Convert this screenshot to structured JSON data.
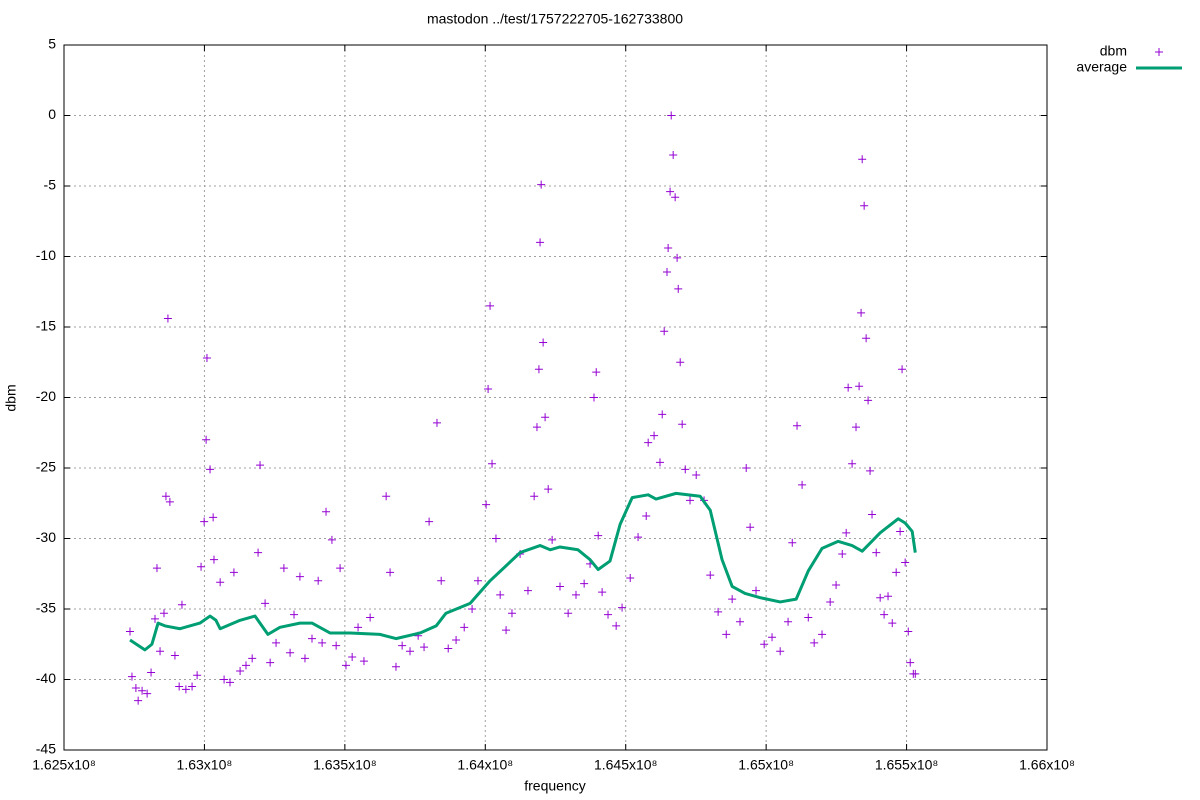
{
  "chart_data": {
    "type": "scatter",
    "title": "mastodon ../test/1757222705-162733800",
    "x_label": "frequency",
    "y_label": "dbm",
    "xlim": [
      162500000,
      166000000
    ],
    "xticks": [
      {
        "value": 162500000,
        "label": "1.625x10⁸"
      },
      {
        "value": 163000000,
        "label": "1.63x10⁸"
      },
      {
        "value": 163500000,
        "label": "1.635x10⁸"
      },
      {
        "value": 164000000,
        "label": "1.64x10⁸"
      },
      {
        "value": 164500000,
        "label": "1.645x10⁸"
      },
      {
        "value": 165000000,
        "label": "1.65x10⁸"
      },
      {
        "value": 165500000,
        "label": "1.655x10⁸"
      },
      {
        "value": 166000000,
        "label": "1.66x10⁸"
      }
    ],
    "ylim": [
      -45,
      5
    ],
    "yticks": [
      5,
      0,
      -5,
      -10,
      -15,
      -20,
      -25,
      -30,
      -35,
      -40,
      -45
    ],
    "grid": true,
    "legend": "outside-top-right",
    "series": [
      {
        "name": "dbm",
        "type": "scatter",
        "color": "#9400d3",
        "x": [
          162735000,
          162742000,
          162756000,
          162764000,
          162778000,
          162796000,
          162810000,
          162824000,
          162831000,
          162842000,
          162856000,
          162863000,
          162870000,
          162877000,
          162895000,
          162910000,
          162920000,
          162934000,
          162956000,
          162974000,
          162988000,
          162999000,
          163006000,
          163009000,
          163020000,
          163031000,
          163034000,
          163056000,
          163070000,
          163091000,
          163105000,
          163127000,
          163148000,
          163170000,
          163191000,
          163198000,
          163216000,
          163234000,
          163255000,
          163283000,
          163305000,
          163319000,
          163340000,
          163358000,
          163383000,
          163405000,
          163419000,
          163433000,
          163454000,
          163469000,
          163483000,
          163504000,
          163526000,
          163547000,
          163568000,
          163590000,
          163647000,
          163661000,
          163682000,
          163704000,
          163732000,
          163761000,
          163782000,
          163800000,
          163828000,
          163843000,
          163868000,
          163896000,
          163925000,
          163953000,
          163974000,
          164003000,
          164010000,
          164017000,
          164024000,
          164038000,
          164053000,
          164074000,
          164095000,
          164124000,
          164152000,
          164174000,
          164184000,
          164191000,
          164195000,
          164199000,
          164206000,
          164213000,
          164224000,
          164238000,
          164266000,
          164295000,
          164323000,
          164352000,
          164373000,
          164387000,
          164395000,
          164402000,
          164416000,
          164437000,
          164466000,
          164487000,
          164516000,
          164544000,
          164573000,
          164580000,
          164601000,
          164622000,
          164630000,
          164637000,
          164647000,
          164651000,
          164658000,
          164662000,
          164669000,
          164676000,
          164683000,
          164687000,
          164694000,
          164701000,
          164712000,
          164729000,
          164751000,
          164779000,
          164801000,
          164829000,
          164858000,
          164879000,
          164907000,
          164929000,
          164943000,
          164964000,
          164993000,
          165021000,
          165050000,
          165078000,
          165093000,
          165110000,
          165128000,
          165150000,
          165171000,
          165199000,
          165228000,
          165249000,
          165271000,
          165285000,
          165292000,
          165306000,
          165320000,
          165331000,
          165338000,
          165342000,
          165349000,
          165356000,
          165363000,
          165370000,
          165377000,
          165392000,
          165406000,
          165420000,
          165434000,
          165449000,
          165463000,
          165477000,
          165484000,
          165495000,
          165506000,
          165513000,
          165524000,
          165531000
        ],
        "values": [
          -36.6,
          -39.8,
          -40.6,
          -41.5,
          -40.8,
          -41.0,
          -39.5,
          -35.7,
          -32.1,
          -38.0,
          -35.3,
          -27.0,
          -14.4,
          -27.4,
          -38.3,
          -40.5,
          -34.7,
          -40.7,
          -40.5,
          -39.7,
          -32.0,
          -28.8,
          -23.0,
          -17.2,
          -25.1,
          -28.5,
          -31.5,
          -33.1,
          -40.0,
          -40.2,
          -32.4,
          -39.4,
          -39.0,
          -38.5,
          -31.0,
          -24.8,
          -34.6,
          -38.8,
          -37.4,
          -32.1,
          -38.1,
          -35.4,
          -32.7,
          -38.5,
          -37.1,
          -33.0,
          -37.4,
          -28.1,
          -30.1,
          -37.6,
          -32.1,
          -39.0,
          -38.4,
          -36.3,
          -38.7,
          -35.6,
          -27.0,
          -32.4,
          -39.1,
          -37.6,
          -38.0,
          -36.9,
          -37.7,
          -28.8,
          -21.8,
          -33.0,
          -37.8,
          -37.2,
          -36.3,
          -35.0,
          -33.0,
          -27.6,
          -19.4,
          -13.5,
          -24.7,
          -30.0,
          -34.0,
          -36.5,
          -35.3,
          -31.1,
          -33.7,
          -27.0,
          -22.1,
          -18.0,
          -9.0,
          -4.9,
          -16.1,
          -21.4,
          -26.5,
          -30.1,
          -33.4,
          -35.3,
          -34.0,
          -33.2,
          -31.8,
          -20.0,
          -18.2,
          -29.8,
          -33.8,
          -35.4,
          -36.2,
          -34.9,
          -32.8,
          -29.9,
          -28.4,
          -23.2,
          -22.7,
          -24.6,
          -21.2,
          -15.3,
          -11.1,
          -9.4,
          -5.4,
          0.0,
          -2.8,
          -5.8,
          -10.1,
          -12.3,
          -17.5,
          -21.9,
          -25.1,
          -27.3,
          -25.5,
          -27.3,
          -32.6,
          -35.2,
          -36.8,
          -34.3,
          -35.9,
          -25.0,
          -29.2,
          -33.7,
          -37.5,
          -37.0,
          -38.0,
          -35.9,
          -30.3,
          -22.0,
          -26.2,
          -35.6,
          -37.4,
          -36.8,
          -34.5,
          -33.3,
          -31.1,
          -29.6,
          -19.3,
          -24.7,
          -22.1,
          -19.2,
          -14.0,
          -3.1,
          -6.4,
          -15.8,
          -20.2,
          -25.2,
          -28.3,
          -31.0,
          -34.2,
          -35.4,
          -34.1,
          -36.0,
          -32.4,
          -29.5,
          -18.0,
          -31.7,
          -36.6,
          -38.8,
          -39.6,
          -39.6
        ]
      },
      {
        "name": "average",
        "type": "line",
        "color": "#009e73",
        "x": [
          162735000,
          162788000,
          162813000,
          162835000,
          162860000,
          162913000,
          162984000,
          163020000,
          163041000,
          163056000,
          163127000,
          163180000,
          163226000,
          163269000,
          163340000,
          163383000,
          163447000,
          163519000,
          163625000,
          163682000,
          163768000,
          163825000,
          163860000,
          163946000,
          164017000,
          164124000,
          164195000,
          164231000,
          164266000,
          164330000,
          164373000,
          164402000,
          164444000,
          164480000,
          164523000,
          164580000,
          164608000,
          164679000,
          164765000,
          164801000,
          164843000,
          164879000,
          164925000,
          164979000,
          165050000,
          165107000,
          165150000,
          165199000,
          165256000,
          165306000,
          165342000,
          165406000,
          165470000,
          165495000,
          165520000,
          165531000
        ],
        "values": [
          -37.2,
          -37.9,
          -37.5,
          -36.0,
          -36.2,
          -36.4,
          -36.0,
          -35.5,
          -35.8,
          -36.4,
          -35.8,
          -35.5,
          -36.8,
          -36.3,
          -36.0,
          -36.0,
          -36.7,
          -36.7,
          -36.8,
          -37.1,
          -36.7,
          -36.2,
          -35.3,
          -34.6,
          -33.0,
          -31.0,
          -30.5,
          -30.8,
          -30.6,
          -30.8,
          -31.5,
          -32.2,
          -31.6,
          -29.0,
          -27.1,
          -26.9,
          -27.2,
          -26.8,
          -27.0,
          -28.0,
          -31.5,
          -33.4,
          -33.9,
          -34.2,
          -34.5,
          -34.3,
          -32.3,
          -30.7,
          -30.2,
          -30.5,
          -30.9,
          -29.6,
          -28.6,
          -28.9,
          -29.5,
          -31.0
        ]
      }
    ]
  }
}
